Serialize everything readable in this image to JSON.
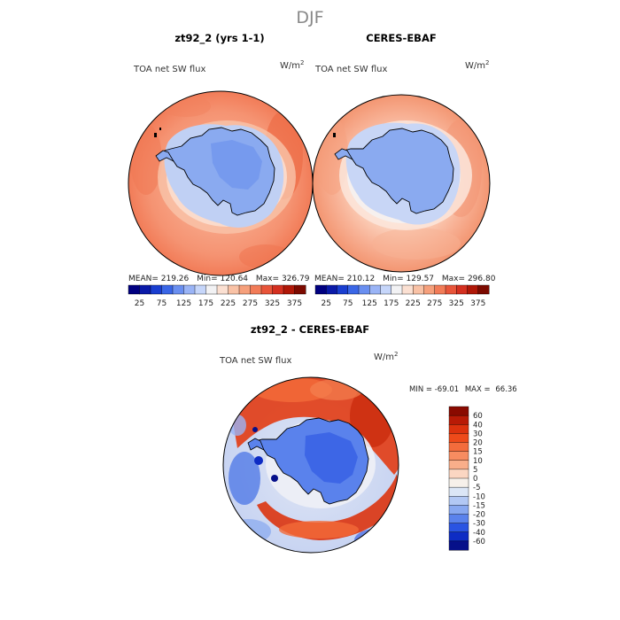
{
  "figure": {
    "season": "DJF",
    "colors": {
      "ice": "#8aaaf0",
      "coast": "#000000",
      "frame": "#000000"
    },
    "panels": [
      {
        "id": "model",
        "title": "zt92_2 (yrs 1-1)",
        "variable": "TOA net SW flux",
        "units_base": "W/m",
        "units_exp": "2",
        "stats": {
          "mean_label": "MEAN=",
          "mean": "219.26",
          "min_label": "Min=",
          "min": "120.64",
          "max_label": "Max=",
          "max": "326.79"
        }
      },
      {
        "id": "obs",
        "title": "CERES-EBAF",
        "variable": "TOA net SW flux",
        "units_base": "W/m",
        "units_exp": "2",
        "stats": {
          "mean_label": "MEAN=",
          "mean": "210.12",
          "min_label": "Min=",
          "min": "129.57",
          "max_label": "Max=",
          "max": "296.80"
        }
      }
    ],
    "diff": {
      "title": "zt92_2 - CERES-EBAF",
      "variable": "TOA net SW flux",
      "units_base": "W/m",
      "units_exp": "2",
      "stats": {
        "min_label": "MIN =",
        "min": "-69.01",
        "max_label": "MAX =",
        "max": "66.36"
      }
    },
    "flux_colorbar": {
      "labels": [
        "25",
        "75",
        "125",
        "175",
        "225",
        "275",
        "325",
        "375"
      ],
      "colors": [
        "#000080",
        "#0a1aa8",
        "#1a3ed0",
        "#3a66e6",
        "#6a8ff0",
        "#9ab4f6",
        "#c6d6fa",
        "#f2f2f4",
        "#fbe0d2",
        "#f9c2a6",
        "#f6a07c",
        "#f27c58",
        "#e8553a",
        "#d43020",
        "#b01808",
        "#7c0a00"
      ]
    },
    "diff_colorbar": {
      "labels": [
        "60",
        "40",
        "30",
        "20",
        "15",
        "10",
        "5",
        "0",
        "-5",
        "-10",
        "-15",
        "-20",
        "-30",
        "-40",
        "-60"
      ],
      "colors": [
        "#8a0a00",
        "#b81a06",
        "#dc320e",
        "#ee4a1a",
        "#f36c3c",
        "#f78c60",
        "#f9ae8a",
        "#fbd6c2",
        "#f6f0ea",
        "#dbe6f6",
        "#b2c8f4",
        "#88a8f0",
        "#5a82ec",
        "#2a54e2",
        "#0e2cc4",
        "#06108a"
      ]
    }
  }
}
